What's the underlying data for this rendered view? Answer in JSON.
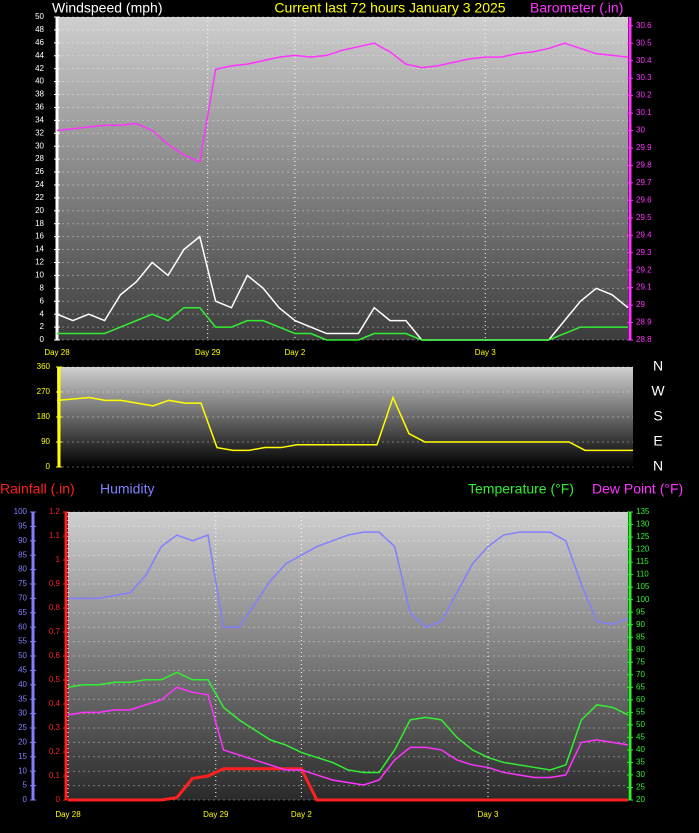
{
  "chart_data": [
    {
      "type": "line",
      "title": "Current last 72 hours January 3 2025",
      "y_label": "Windspeed (mph)",
      "y2_label": "Barometer (.in)",
      "x": [
        0,
        2,
        4,
        6,
        8,
        10,
        12,
        14,
        16,
        18,
        20,
        22,
        24,
        26,
        28,
        30,
        32,
        34,
        36,
        38,
        40,
        42,
        44,
        46,
        48,
        50,
        52,
        54,
        56,
        58,
        60,
        62,
        64,
        66,
        68,
        70,
        72
      ],
      "xlim": [
        0,
        72
      ],
      "xticks": [
        {
          "value": 0,
          "label": "Day 28"
        },
        {
          "value": 19,
          "label": "Day 29"
        },
        {
          "value": 30,
          "label": "Day 2"
        },
        {
          "value": 54,
          "label": "Day 3"
        }
      ],
      "ylim": [
        0,
        50
      ],
      "yticks": [
        0,
        2,
        4,
        6,
        8,
        10,
        12,
        14,
        16,
        18,
        20,
        22,
        24,
        26,
        28,
        30,
        32,
        34,
        36,
        38,
        40,
        42,
        44,
        46,
        48,
        50
      ],
      "y2lim": [
        28.8,
        30.65
      ],
      "y2ticks": [
        28.8,
        28.9,
        29,
        29.1,
        29.2,
        29.3,
        29.4,
        29.5,
        29.6,
        29.7,
        29.8,
        29.9,
        30,
        30.1,
        30.2,
        30.3,
        30.4,
        30.5,
        30.6
      ],
      "grid": true,
      "series": [
        {
          "color": "#ffffff",
          "values": [
            4,
            3,
            4,
            3,
            7,
            9,
            12,
            10,
            14,
            16,
            6,
            5,
            10,
            8,
            5,
            3,
            2,
            1,
            1,
            1,
            5,
            3,
            3,
            0,
            0,
            0,
            0,
            0,
            0,
            0,
            0,
            0,
            3,
            6,
            8,
            7,
            5
          ]
        },
        {
          "color": "#33ee33",
          "values": [
            1,
            1,
            1,
            1,
            2,
            3,
            4,
            3,
            5,
            5,
            2,
            2,
            3,
            3,
            2,
            1,
            1,
            0,
            0,
            0,
            1,
            1,
            1,
            0,
            0,
            0,
            0,
            0,
            0,
            0,
            0,
            0,
            1,
            2,
            2,
            2,
            2
          ]
        },
        {
          "color": "#ff33ff",
          "axis": "y2",
          "values": [
            30.0,
            30.01,
            30.02,
            30.03,
            30.03,
            30.04,
            30.0,
            29.92,
            29.86,
            29.82,
            30.35,
            30.37,
            30.38,
            30.4,
            30.42,
            30.43,
            30.42,
            30.43,
            30.46,
            30.48,
            30.5,
            30.45,
            30.38,
            30.36,
            30.37,
            30.39,
            30.41,
            30.42,
            30.42,
            30.44,
            30.45,
            30.47,
            30.5,
            30.47,
            30.44,
            30.43,
            30.42
          ]
        }
      ]
    },
    {
      "type": "line",
      "x": [
        0,
        2,
        4,
        6,
        8,
        10,
        12,
        14,
        16,
        18,
        20,
        22,
        24,
        26,
        28,
        30,
        32,
        34,
        36,
        38,
        40,
        42,
        44,
        46,
        48,
        50,
        52,
        54,
        56,
        58,
        60,
        62,
        64,
        66,
        68,
        70,
        72
      ],
      "xlim": [
        0,
        72
      ],
      "ylim": [
        0,
        360
      ],
      "yticks": [
        0,
        90,
        180,
        270,
        360
      ],
      "y2lim": [
        0,
        360
      ],
      "y2ticks": [
        {
          "value": 360,
          "label": "N"
        },
        {
          "value": 270,
          "label": "W"
        },
        {
          "value": 180,
          "label": "S"
        },
        {
          "value": 90,
          "label": "E"
        },
        {
          "value": 0,
          "label": "N"
        }
      ],
      "grid": true,
      "series": [
        {
          "color": "#ffff00",
          "values": [
            240,
            245,
            250,
            240,
            240,
            230,
            220,
            240,
            230,
            230,
            70,
            60,
            60,
            70,
            70,
            80,
            80,
            80,
            80,
            80,
            80,
            250,
            120,
            90,
            90,
            90,
            90,
            90,
            90,
            90,
            90,
            90,
            90,
            60,
            60,
            60,
            60
          ]
        }
      ]
    },
    {
      "type": "line",
      "x": [
        0,
        2,
        4,
        6,
        8,
        10,
        12,
        14,
        16,
        18,
        20,
        22,
        24,
        26,
        28,
        30,
        32,
        34,
        36,
        38,
        40,
        42,
        44,
        46,
        48,
        50,
        52,
        54,
        56,
        58,
        60,
        62,
        64,
        66,
        68,
        70,
        72
      ],
      "xlim": [
        0,
        72
      ],
      "xticks": [
        {
          "value": 0,
          "label": "Day 28"
        },
        {
          "value": 19,
          "label": "Day 29"
        },
        {
          "value": 30,
          "label": "Day 2"
        },
        {
          "value": 54,
          "label": "Day 3"
        }
      ],
      "ylim": [
        0,
        100
      ],
      "yticks": [
        0,
        5,
        10,
        15,
        20,
        25,
        30,
        35,
        40,
        45,
        50,
        55,
        60,
        65,
        70,
        75,
        80,
        85,
        90,
        95,
        100
      ],
      "y2lim": [
        20,
        135
      ],
      "y2ticks": [
        20,
        25,
        30,
        35,
        40,
        45,
        50,
        55,
        60,
        65,
        70,
        75,
        80,
        85,
        90,
        95,
        100,
        105,
        110,
        115,
        120,
        125,
        130,
        135
      ],
      "y3lim": [
        0,
        1.2
      ],
      "y3ticks": [
        0,
        0.1,
        0.2,
        0.3,
        0.4,
        0.5,
        0.6,
        0.7,
        0.8,
        0.9,
        1,
        1.1,
        1.2
      ],
      "grid": true,
      "series": [
        {
          "name": "Rainfall (.in)",
          "color": "#ff2020",
          "axis": "y3",
          "values": [
            0,
            0,
            0,
            0,
            0,
            0,
            0,
            0.01,
            0.09,
            0.1,
            0.13,
            0.13,
            0.13,
            0.13,
            0.13,
            0.13,
            0,
            0,
            0,
            0,
            0,
            0,
            0,
            0,
            0,
            0,
            0,
            0,
            0,
            0,
            0,
            0,
            0,
            0,
            0,
            0,
            0
          ]
        },
        {
          "name": "Humidity",
          "color": "#8080ff",
          "values": [
            70,
            70,
            70,
            71,
            72,
            78,
            88,
            92,
            90,
            92,
            60,
            60,
            68,
            76,
            82,
            85,
            88,
            90,
            92,
            93,
            93,
            88,
            65,
            60,
            62,
            72,
            82,
            88,
            92,
            93,
            93,
            93,
            90,
            75,
            62,
            61,
            63
          ]
        },
        {
          "name": "Temperature (°F)",
          "color": "#33ee33",
          "axis": "y2",
          "values": [
            65,
            66,
            66,
            67,
            67,
            68,
            68,
            71,
            68,
            68,
            57,
            52,
            48,
            44,
            42,
            39,
            37,
            35,
            32,
            31,
            31,
            40,
            52,
            53,
            52,
            45,
            40,
            37,
            35,
            34,
            33,
            32,
            34,
            52,
            58,
            57,
            54
          ]
        },
        {
          "name": "Dew Point (°F)",
          "color": "#ff33ff",
          "axis": "y2",
          "values": [
            54,
            55,
            55,
            56,
            56,
            58,
            60,
            65,
            63,
            62,
            40,
            38,
            36,
            34,
            32,
            32,
            30,
            28,
            27,
            26,
            28,
            36,
            41,
            41,
            40,
            36,
            34,
            33,
            31,
            30,
            29,
            29,
            30,
            43,
            44,
            43,
            42
          ]
        }
      ]
    }
  ]
}
